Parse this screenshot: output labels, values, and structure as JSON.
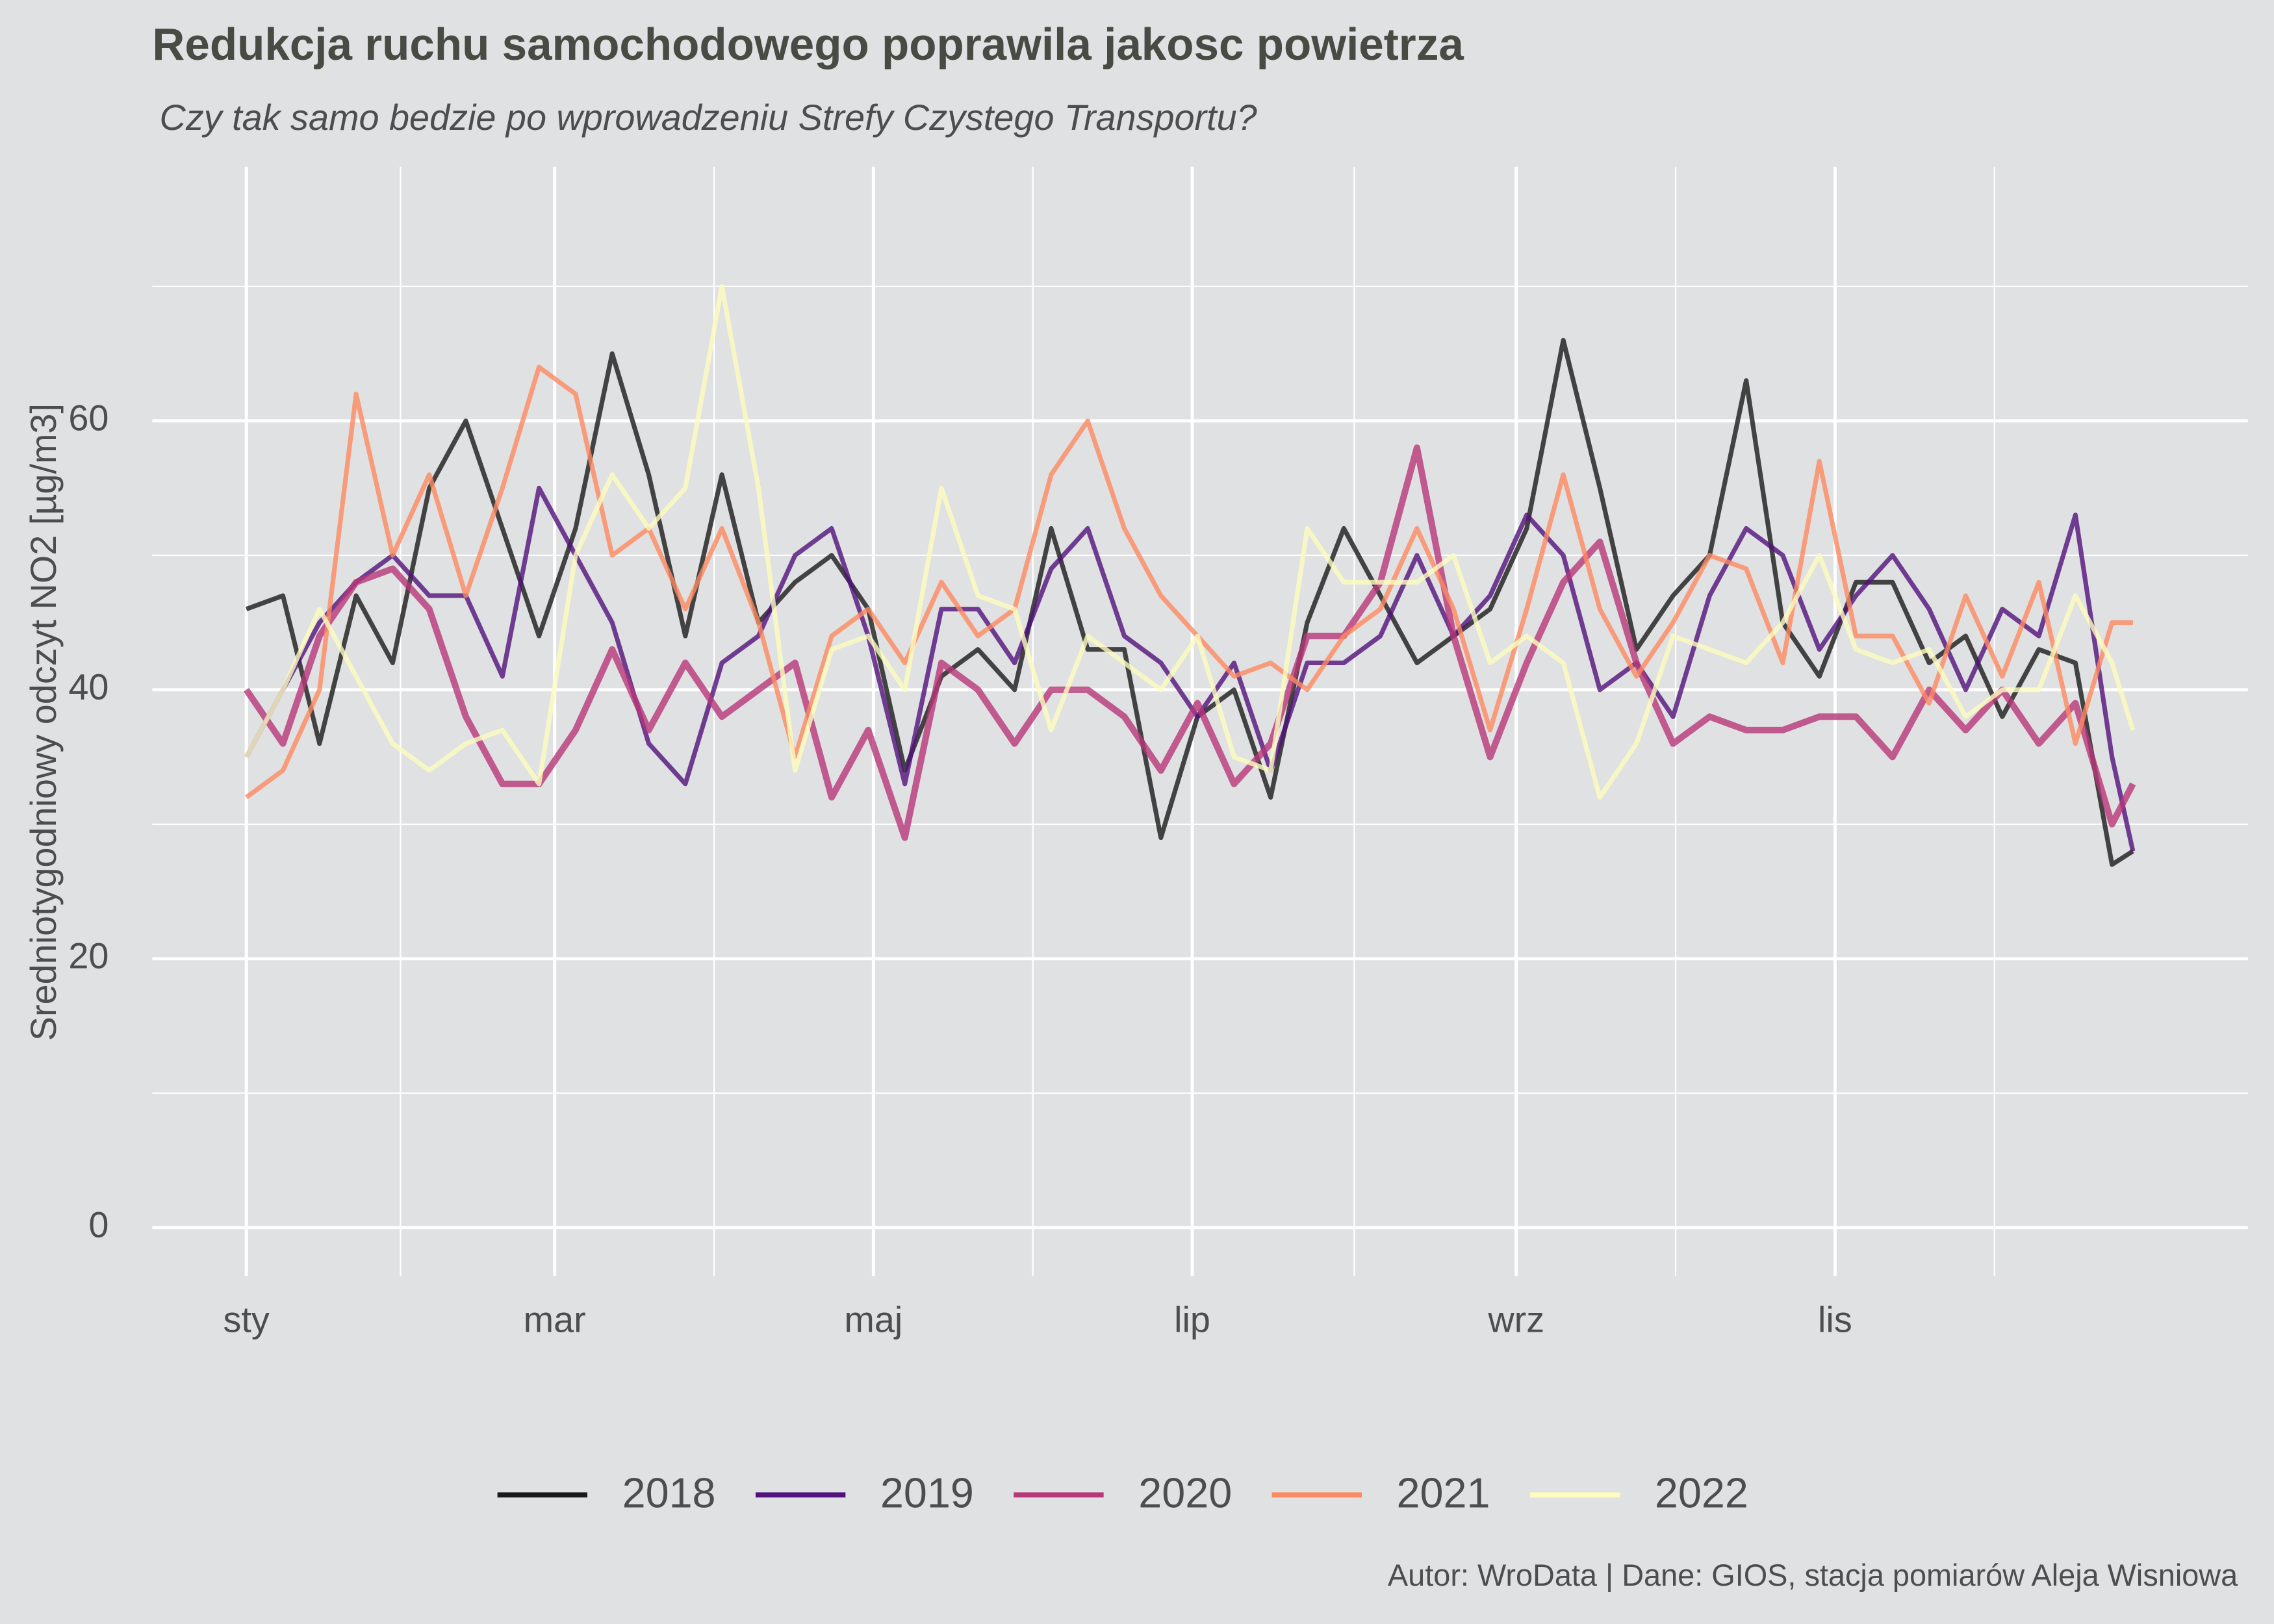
{
  "chart_data": {
    "type": "line",
    "title": "Redukcja ruchu samochodowego poprawila jakosc powietrza",
    "subtitle": "Czy tak samo bedzie po wprowadzeniu Strefy Czystego Transportu?",
    "y_label": "Sredniotygodniowy odczyt NO2 [µg/m3]",
    "caption": "Autor: WroData | Dane: GIOS, stacja pomiarów Aleja Wisniowa",
    "x": [
      1,
      8,
      15,
      22,
      29,
      36,
      43,
      50,
      57,
      64,
      71,
      78,
      85,
      92,
      99,
      106,
      113,
      120,
      127,
      134,
      141,
      148,
      155,
      162,
      169,
      176,
      183,
      190,
      197,
      204,
      211,
      218,
      225,
      232,
      239,
      246,
      253,
      260,
      267,
      274,
      281,
      288,
      295,
      302,
      309,
      316,
      323,
      330,
      337,
      344,
      351,
      358,
      362
    ],
    "xlim": [
      -17,
      384
    ],
    "xticks": [
      {
        "value": 1,
        "label": "sty"
      },
      {
        "value": 60,
        "label": "mar"
      },
      {
        "value": 121,
        "label": "maj"
      },
      {
        "value": 182,
        "label": "lip"
      },
      {
        "value": 244,
        "label": "wrz"
      },
      {
        "value": 305,
        "label": "lis"
      }
    ],
    "ylim": [
      -3.6,
      78.9
    ],
    "yticks": [
      0,
      20,
      40,
      60
    ],
    "grid": true,
    "legend": "bottom",
    "series": [
      {
        "name": "2018",
        "color": "#1a1a1a",
        "values": [
          46,
          47,
          36,
          47,
          42,
          55,
          60,
          52,
          44,
          52,
          65,
          56,
          44,
          56,
          45,
          48,
          50,
          46,
          34,
          41,
          43,
          40,
          52,
          43,
          43,
          29,
          38,
          40,
          32,
          45,
          52,
          47,
          42,
          44,
          46,
          52,
          66,
          55,
          43,
          47,
          50,
          63,
          45,
          41,
          48,
          48,
          42,
          44,
          38,
          43,
          42,
          27,
          28
        ]
      },
      {
        "name": "2019",
        "color": "#51127c",
        "values": [
          35,
          40,
          45,
          48,
          50,
          47,
          47,
          41,
          55,
          50,
          45,
          36,
          33,
          42,
          44,
          50,
          52,
          44,
          33,
          46,
          46,
          42,
          49,
          52,
          44,
          42,
          38,
          42,
          34,
          42,
          42,
          44,
          50,
          44,
          47,
          53,
          50,
          40,
          42,
          38,
          47,
          52,
          50,
          43,
          47,
          50,
          46,
          40,
          46,
          44,
          53,
          35,
          28
        ]
      },
      {
        "name": "2020",
        "color": "#b73779",
        "values": [
          40,
          36,
          44,
          48,
          49,
          46,
          38,
          33,
          33,
          37,
          43,
          37,
          42,
          38,
          40,
          42,
          32,
          37,
          29,
          42,
          40,
          36,
          40,
          40,
          38,
          34,
          39,
          33,
          36,
          44,
          44,
          48,
          58,
          44,
          35,
          42,
          48,
          51,
          42,
          36,
          38,
          37,
          37,
          38,
          38,
          35,
          40,
          37,
          40,
          36,
          39,
          30,
          33
        ]
      },
      {
        "name": "2021",
        "color": "#fc8961",
        "values": [
          32,
          34,
          40,
          62,
          50,
          56,
          47,
          55,
          64,
          62,
          50,
          52,
          46,
          52,
          45,
          35,
          44,
          46,
          42,
          48,
          44,
          46,
          56,
          60,
          52,
          47,
          44,
          41,
          42,
          40,
          44,
          46,
          52,
          46,
          37,
          46,
          56,
          46,
          41,
          45,
          50,
          49,
          42,
          57,
          44,
          44,
          39,
          47,
          41,
          48,
          36,
          45,
          45
        ]
      },
      {
        "name": "2022",
        "color": "#fcfdbf",
        "values": [
          35,
          40,
          46,
          41,
          36,
          34,
          36,
          37,
          33,
          50,
          56,
          52,
          55,
          70,
          55,
          34,
          43,
          44,
          40,
          55,
          47,
          46,
          37,
          44,
          42,
          40,
          44,
          35,
          34,
          52,
          48,
          48,
          48,
          50,
          42,
          44,
          42,
          32,
          36,
          44,
          43,
          42,
          45,
          50,
          43,
          42,
          43,
          38,
          40,
          40,
          47,
          42,
          37
        ]
      }
    ]
  }
}
